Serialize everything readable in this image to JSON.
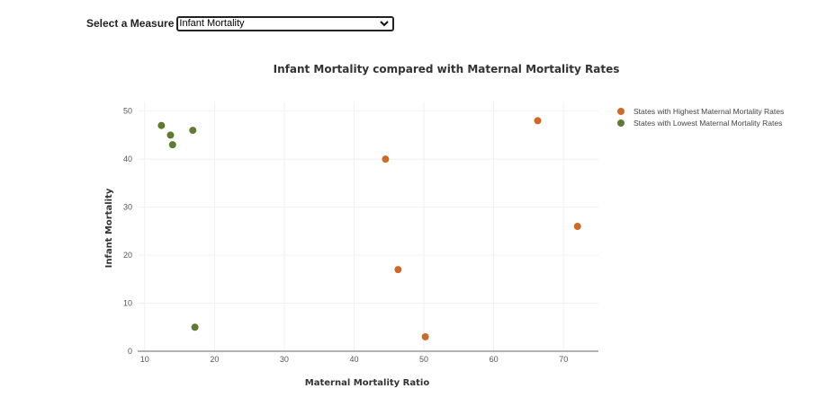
{
  "measure": {
    "label": "Select a Measure",
    "selected": "Infant Mortality"
  },
  "colors": {
    "highest": "#cc6a2a",
    "lowest": "#5e7a34"
  },
  "chart_data": {
    "type": "scatter",
    "title": "Infant Mortality compared with Maternal Mortality Rates",
    "xlabel": "Maternal Mortality Ratio",
    "ylabel": "Infant Mortality",
    "xlim": [
      9,
      75
    ],
    "ylim": [
      0,
      52
    ],
    "xticks": [
      10,
      20,
      30,
      40,
      50,
      60,
      70
    ],
    "yticks": [
      0,
      10,
      20,
      30,
      40,
      50
    ],
    "grid": true,
    "legend_position": "top-right",
    "series": [
      {
        "name": "States with Highest Maternal Mortality Rates",
        "color": "#cc6a2a",
        "points": [
          {
            "x": 44.5,
            "y": 40
          },
          {
            "x": 66.3,
            "y": 48
          },
          {
            "x": 72.0,
            "y": 26
          },
          {
            "x": 46.3,
            "y": 17
          },
          {
            "x": 50.2,
            "y": 3
          }
        ]
      },
      {
        "name": "States with Lowest Maternal Mortality Rates",
        "color": "#5e7a34",
        "points": [
          {
            "x": 12.4,
            "y": 47
          },
          {
            "x": 13.7,
            "y": 45
          },
          {
            "x": 14.0,
            "y": 43
          },
          {
            "x": 16.9,
            "y": 46
          },
          {
            "x": 17.2,
            "y": 5
          }
        ]
      }
    ]
  }
}
